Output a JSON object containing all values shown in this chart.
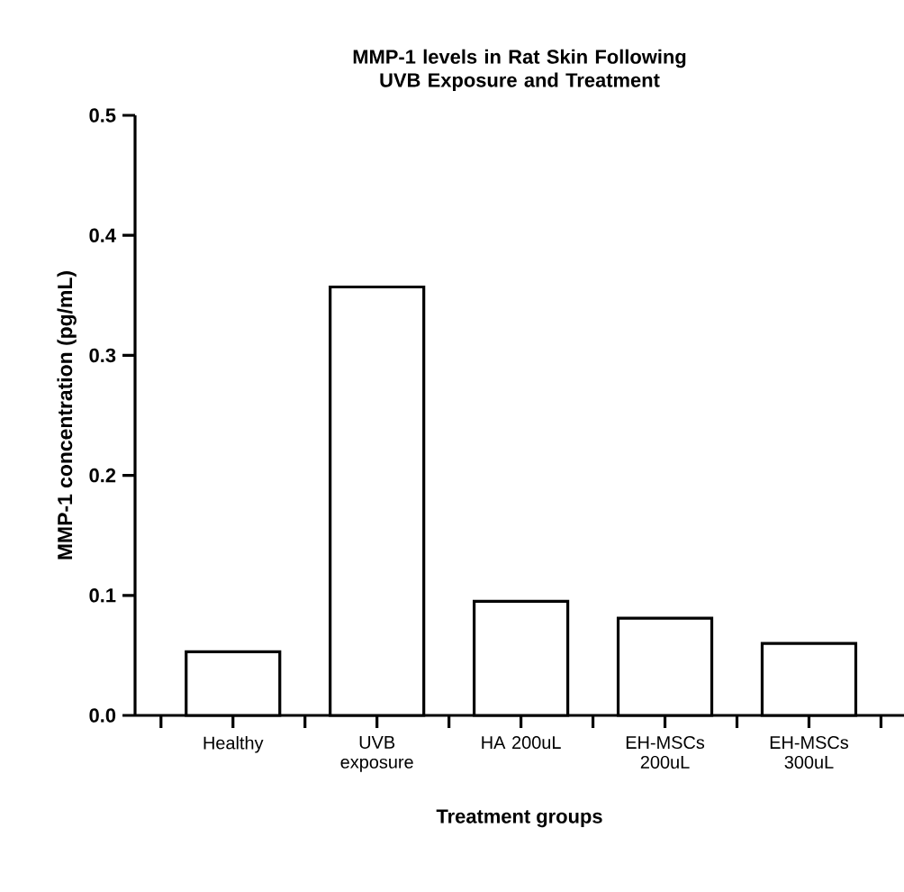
{
  "chart_data": {
    "type": "bar",
    "title": "MMP-1 levels in Rat Skin Following UVB Exposure and Treatment",
    "xlabel": "Treatment groups",
    "ylabel": "MMP-1 concentration (pg/mL)",
    "categories": [
      "Healthy",
      "UVB exposure",
      "HA 200uL",
      "EH-MSCs 200uL",
      "EH-MSCs 300uL"
    ],
    "values": [
      0.053,
      0.357,
      0.095,
      0.081,
      0.06
    ],
    "color": "#ffffff",
    "ylim": [
      0,
      0.5
    ],
    "yticks": [
      {
        "value": 0,
        "label": "0.0"
      },
      0.1,
      0.2,
      0.3,
      0.4,
      0.5
    ]
  }
}
